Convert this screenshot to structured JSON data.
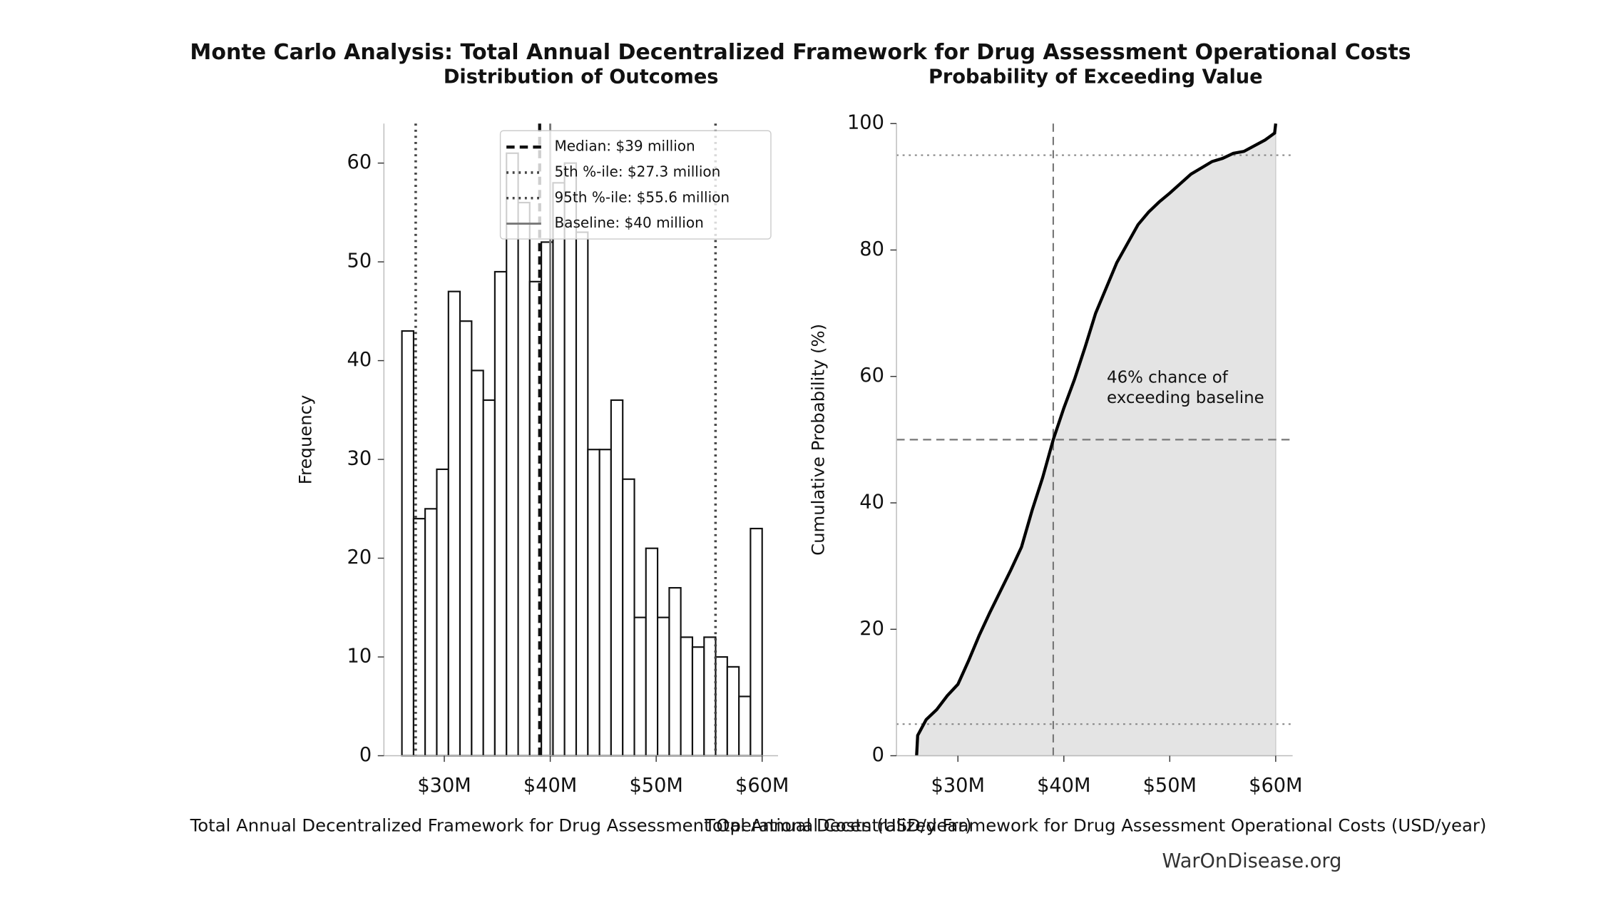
{
  "title": "Monte Carlo Analysis: Total Annual Decentralized Framework for Drug Assessment Operational Costs",
  "watermark": "WarOnDisease.org",
  "chart_data": [
    {
      "type": "histogram",
      "subtitle": "Distribution of Outcomes",
      "x_label": "Total Annual Decentralized Framework for Drug Assessment Operational Costs (USD/year)",
      "y_label": "Frequency",
      "bins": [
        26.0,
        27.1,
        28.19,
        29.29,
        30.39,
        31.48,
        32.58,
        33.68,
        34.77,
        35.87,
        36.97,
        38.06,
        39.16,
        40.26,
        41.35,
        42.45,
        43.55,
        44.65,
        45.74,
        46.84,
        47.94,
        49.03,
        50.13,
        51.23,
        52.32,
        53.42,
        54.52,
        55.61,
        56.71,
        57.81,
        58.9,
        60.0
      ],
      "values": [
        43,
        24,
        25,
        29,
        47,
        44,
        39,
        36,
        49,
        61,
        56,
        48,
        52,
        58,
        60,
        53,
        31,
        31,
        36,
        28,
        14,
        21,
        14,
        17,
        12,
        11,
        12,
        10,
        9,
        6,
        23
      ],
      "color": "#ffffff",
      "edgecolor": "#111111",
      "xlim": [
        24.3,
        61.5
      ],
      "ylim": [
        0,
        64
      ],
      "xticks": [
        {
          "value": 30,
          "label": "$30M"
        },
        {
          "value": 40,
          "label": "$40M"
        },
        {
          "value": 50,
          "label": "$50M"
        },
        {
          "value": 60,
          "label": "$60M"
        }
      ],
      "yticks": [
        0,
        10,
        20,
        30,
        40,
        50,
        60
      ],
      "legend": "upper right",
      "reference_lines": [
        {
          "name": "Median: $39 million",
          "value": 39,
          "style": "dashed",
          "color": "#111111",
          "width": 3
        },
        {
          "name": "5th %-ile: $27.3 million",
          "value": 27.3,
          "style": "dotted",
          "color": "#444444",
          "width": 2.5
        },
        {
          "name": "95th %-ile: $55.6 million",
          "value": 55.6,
          "style": "dotted",
          "color": "#444444",
          "width": 2.5
        },
        {
          "name": "Baseline: $40 million",
          "value": 40,
          "style": "solid",
          "color": "#777777",
          "width": 2
        }
      ]
    },
    {
      "type": "line",
      "subtitle": "Probability of Exceeding Value",
      "x_label": "Total Annual Decentralized Framework for Drug Assessment Operational Costs (USD/year)",
      "y_label": "Cumulative Probability (%)",
      "x": [
        26.1,
        26.2,
        27,
        28,
        29,
        30,
        31,
        32,
        33,
        34,
        35,
        36,
        37,
        38,
        39,
        40,
        41,
        42,
        43,
        44,
        45,
        46,
        47,
        48,
        49,
        50,
        51,
        52,
        53,
        54,
        55,
        56,
        57,
        58,
        59,
        59.9,
        60
      ],
      "values": [
        0,
        3.2,
        5.7,
        7.3,
        9.5,
        11.3,
        15,
        19,
        22.6,
        26,
        29.4,
        33,
        38.8,
        44,
        50,
        55,
        59.5,
        64.6,
        70,
        74,
        78,
        81,
        84,
        86,
        87.6,
        89,
        90.5,
        92,
        93,
        94,
        94.5,
        95.3,
        95.6,
        96.5,
        97.4,
        98.5,
        100
      ],
      "color": "#000000",
      "fill": "#e4e4e4",
      "xlim": [
        24.2,
        61.6
      ],
      "ylim": [
        0,
        100
      ],
      "xticks": [
        {
          "value": 30,
          "label": "$30M"
        },
        {
          "value": 40,
          "label": "$40M"
        },
        {
          "value": 50,
          "label": "$50M"
        },
        {
          "value": 60,
          "label": "$60M"
        }
      ],
      "yticks": [
        0,
        20,
        40,
        60,
        80,
        100
      ],
      "reference_lines": [
        {
          "orientation": "horizontal",
          "value": 5,
          "style": "dotted",
          "color": "#888888"
        },
        {
          "orientation": "horizontal",
          "value": 50,
          "style": "dashed",
          "color": "#777777"
        },
        {
          "orientation": "horizontal",
          "value": 95,
          "style": "dotted",
          "color": "#888888"
        },
        {
          "orientation": "vertical",
          "value": 39,
          "style": "dashed",
          "color": "#777777"
        }
      ],
      "annotation": [
        "46% chance of",
        "exceeding baseline"
      ]
    }
  ]
}
